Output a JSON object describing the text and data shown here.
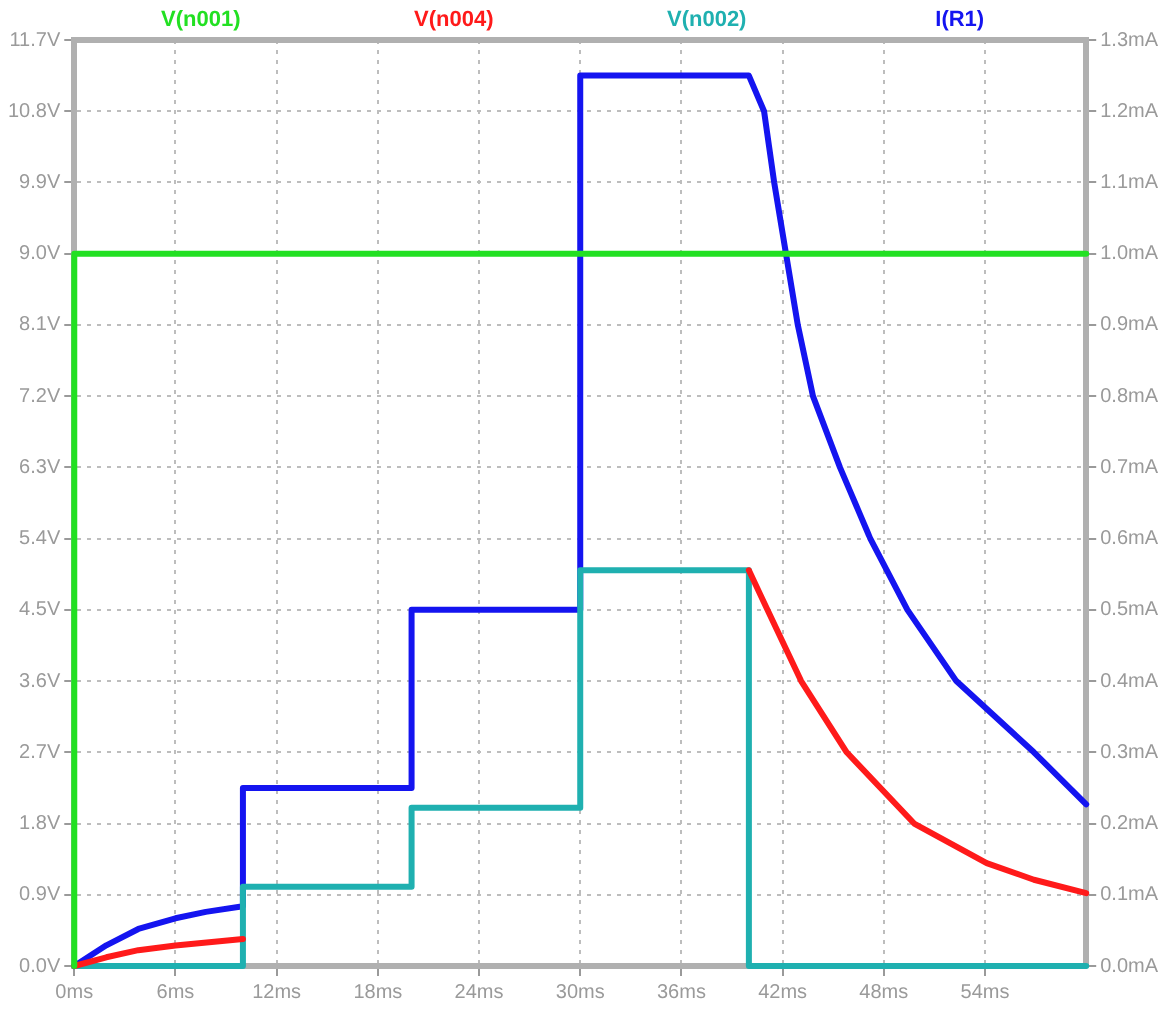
{
  "chart_data": {
    "type": "line",
    "xlim": [
      0,
      60
    ],
    "xticks": [
      {
        "value": 0,
        "label": "0ms"
      },
      {
        "value": 6,
        "label": "6ms"
      },
      {
        "value": 12,
        "label": "12ms"
      },
      {
        "value": 18,
        "label": "18ms"
      },
      {
        "value": 24,
        "label": "24ms"
      },
      {
        "value": 30,
        "label": "30ms"
      },
      {
        "value": 36,
        "label": "36ms"
      },
      {
        "value": 42,
        "label": "42ms"
      },
      {
        "value": 48,
        "label": "48ms"
      },
      {
        "value": 54,
        "label": "54ms"
      }
    ],
    "ylim": [
      0,
      11.7
    ],
    "yticks": [
      {
        "value": 0,
        "label": "0.0V"
      },
      {
        "value": 0.9,
        "label": "0.9V"
      },
      {
        "value": 1.8,
        "label": "1.8V"
      },
      {
        "value": 2.7,
        "label": "2.7V"
      },
      {
        "value": 3.6,
        "label": "3.6V"
      },
      {
        "value": 4.5,
        "label": "4.5V"
      },
      {
        "value": 5.4,
        "label": "5.4V"
      },
      {
        "value": 6.3,
        "label": "6.3V"
      },
      {
        "value": 7.2,
        "label": "7.2V"
      },
      {
        "value": 8.1,
        "label": "8.1V"
      },
      {
        "value": 9.0,
        "label": "9.0V"
      },
      {
        "value": 9.9,
        "label": "9.9V"
      },
      {
        "value": 10.8,
        "label": "10.8V"
      },
      {
        "value": 11.7,
        "label": "11.7V"
      }
    ],
    "y2lim": [
      0,
      1.3
    ],
    "y2ticks": [
      {
        "value": 0,
        "label": "0.0mA"
      },
      {
        "value": 0.1,
        "label": "0.1mA"
      },
      {
        "value": 0.2,
        "label": "0.2mA"
      },
      {
        "value": 0.3,
        "label": "0.3mA"
      },
      {
        "value": 0.4,
        "label": "0.4mA"
      },
      {
        "value": 0.5,
        "label": "0.5mA"
      },
      {
        "value": 0.6,
        "label": "0.6mA"
      },
      {
        "value": 0.7,
        "label": "0.7mA"
      },
      {
        "value": 0.8,
        "label": "0.8mA"
      },
      {
        "value": 0.9,
        "label": "0.9mA"
      },
      {
        "value": 1.0,
        "label": "1.0mA"
      },
      {
        "value": 1.1,
        "label": "1.1mA"
      },
      {
        "value": 1.2,
        "label": "1.2mA"
      },
      {
        "value": 1.3,
        "label": "1.3mA"
      }
    ],
    "grid": true,
    "legend": "top",
    "line_style": "solid",
    "series": [
      {
        "name": "V(n001)",
        "color": "#22e022",
        "x": [
          0,
          0,
          60
        ],
        "values": [
          0,
          9.0,
          9.0
        ]
      },
      {
        "name": "V(n004)",
        "color": "#ff1a1a",
        "x": [
          0,
          1.9,
          3.8,
          6,
          8,
          10,
          25,
          40,
          41.1,
          43.1,
          45.8,
          49.8,
          54.1,
          56.9,
          60
        ],
        "values": [
          0,
          0.11,
          0.2,
          0.26,
          0.3,
          0.34,
          null,
          5.0,
          4.5,
          3.6,
          2.7,
          1.8,
          1.3,
          1.09,
          0.92
        ]
      },
      {
        "name": "V(n002)",
        "color": "#1fb0b0",
        "x": [
          0,
          10,
          10,
          20,
          20,
          30,
          30,
          40,
          40,
          60
        ],
        "values": [
          0,
          0,
          1.0,
          1.0,
          2.0,
          2.0,
          5.0,
          5.0,
          0,
          0
        ]
      },
      {
        "name": "I(R1)",
        "color": "#1414f0",
        "axis": "y2",
        "x": [
          0,
          1.9,
          3.8,
          6,
          7.8,
          10,
          10,
          20,
          20,
          30,
          30,
          40,
          40.9,
          41.5,
          42.2,
          42.9,
          43.8,
          45.4,
          47.2,
          49.4,
          52.3,
          56.9,
          60
        ],
        "values": [
          0,
          0.029,
          0.052,
          0.067,
          0.076,
          0.084,
          0.25,
          0.25,
          0.5,
          0.5,
          1.25,
          1.25,
          1.2,
          1.1,
          1.0,
          0.9,
          0.8,
          0.7,
          0.6,
          0.5,
          0.4,
          0.3,
          0.227
        ]
      }
    ]
  }
}
